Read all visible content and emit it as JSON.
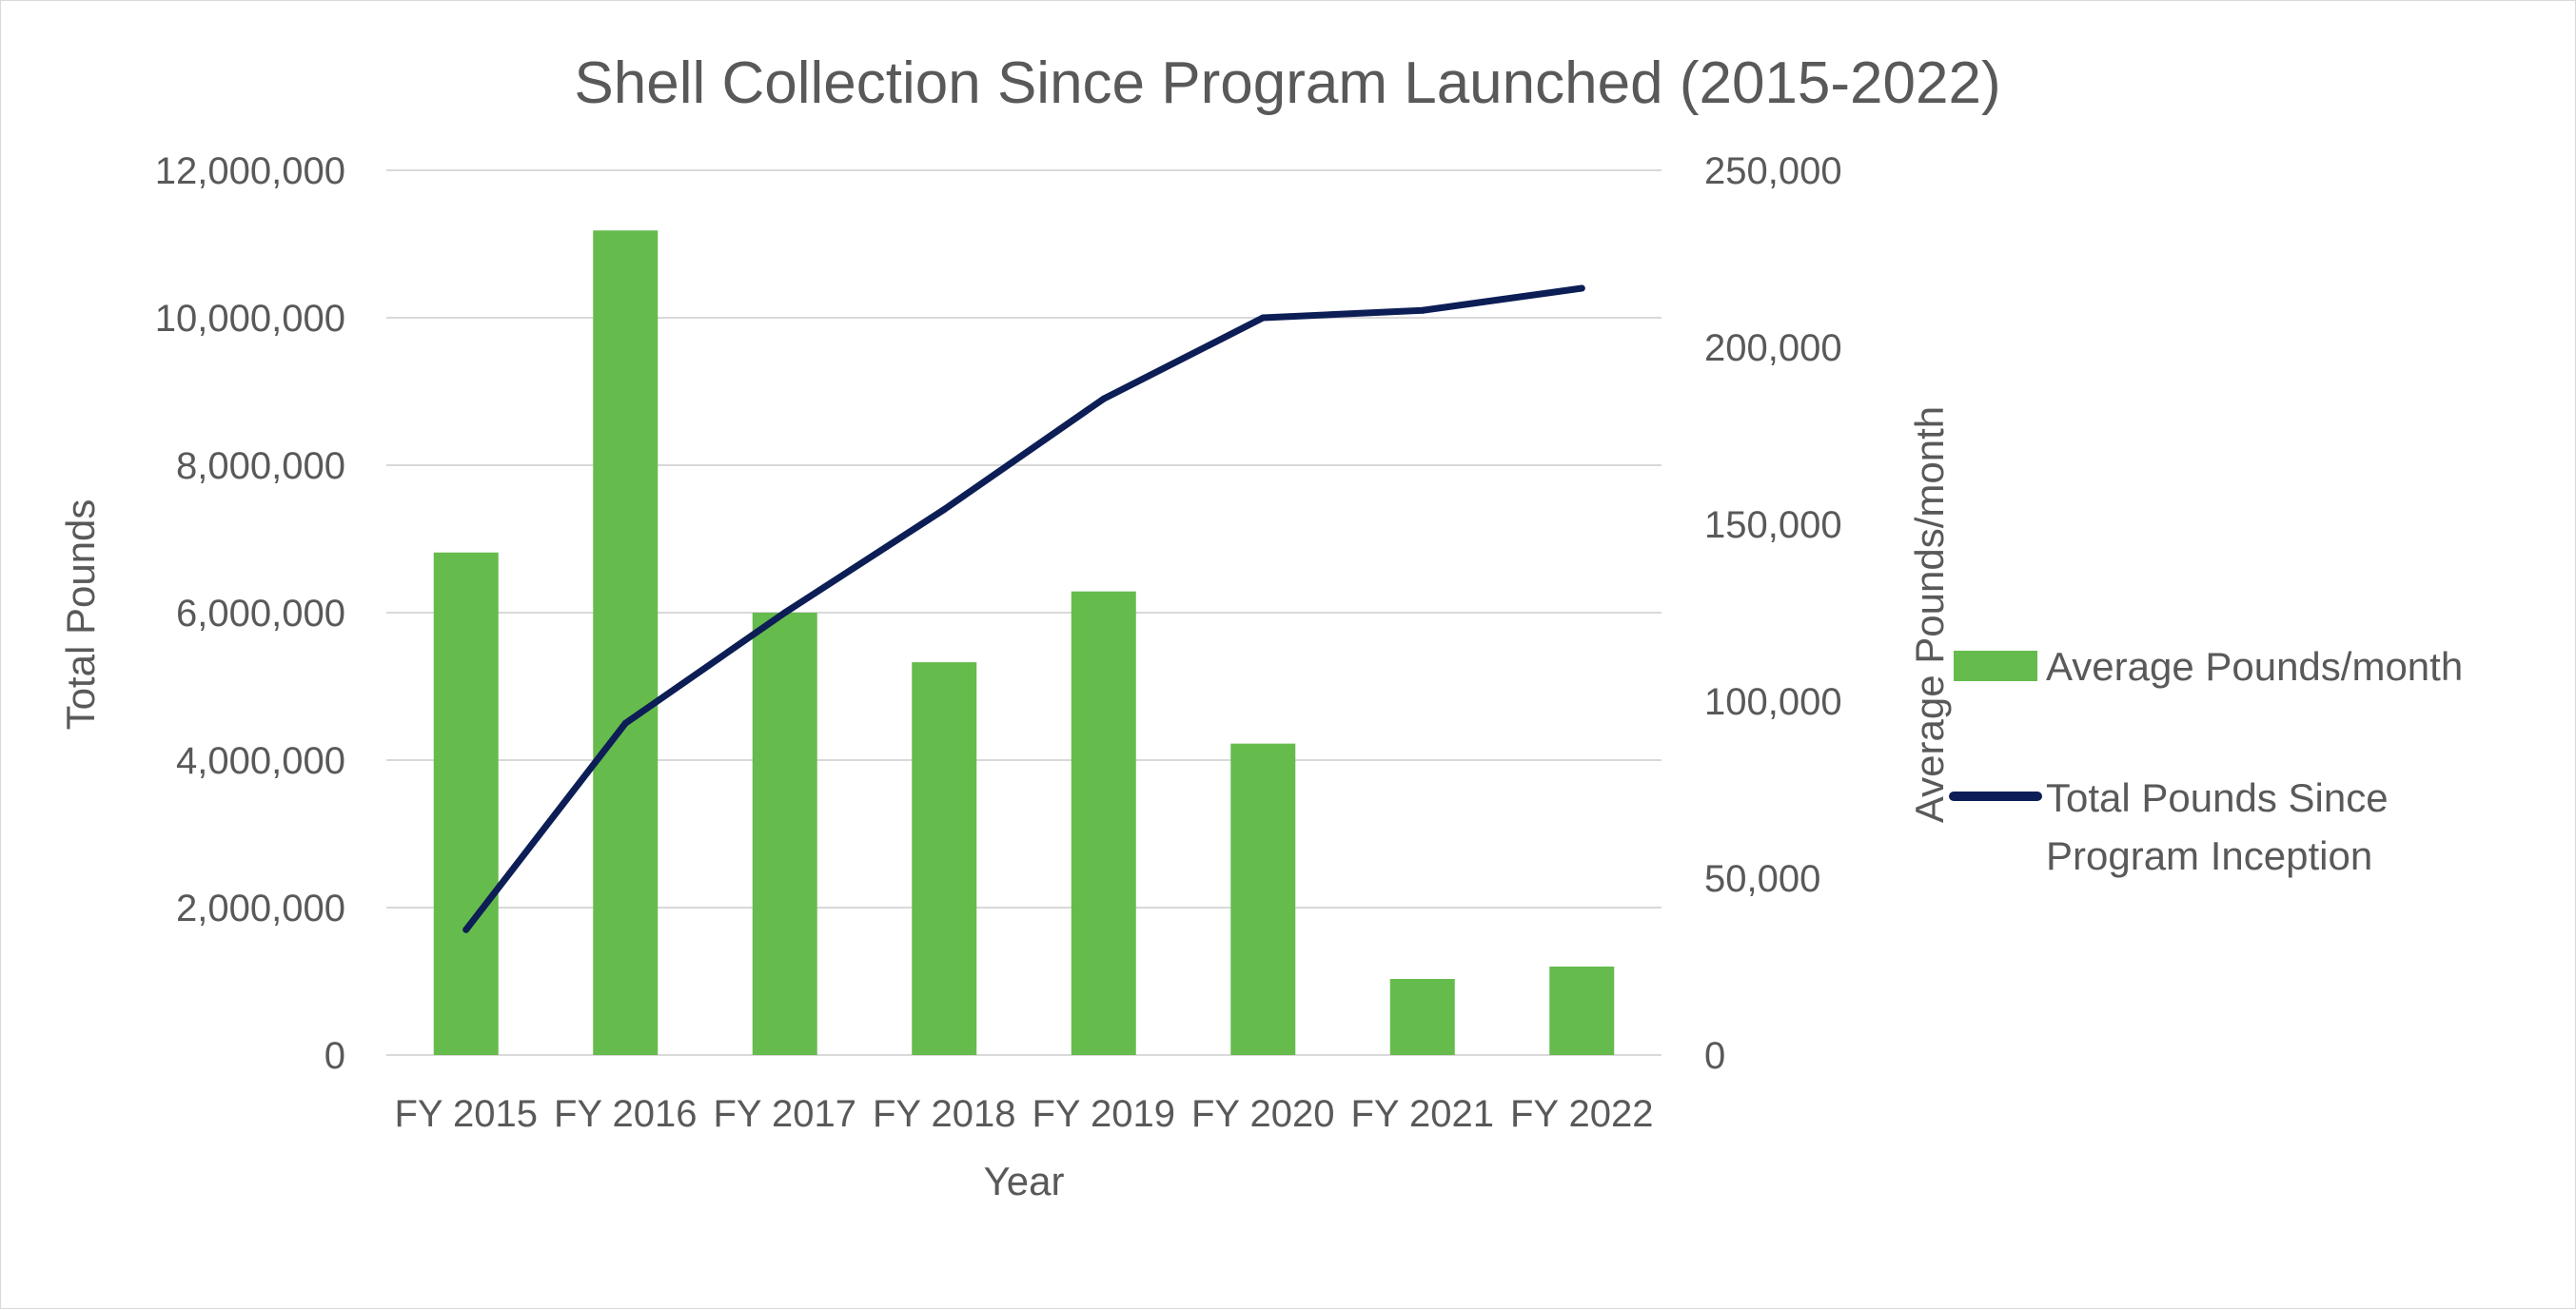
{
  "chart_data": {
    "type": "bar",
    "title": "Shell Collection Since Program Launched (2015-2022)",
    "xlabel": "Year",
    "ylabel": "Total Pounds",
    "y2label": "Average Pounds/month",
    "categories": [
      "FY 2015",
      "FY 2016",
      "FY 2017",
      "FY 2018",
      "FY 2019",
      "FY 2020",
      "FY 2021",
      "FY 2022"
    ],
    "ylim": [
      0,
      12000000
    ],
    "y2lim": [
      0,
      250000
    ],
    "yticks": [
      "0",
      "2,000,000",
      "4,000,000",
      "6,000,000",
      "8,000,000",
      "10,000,000",
      "12,000,000"
    ],
    "y2ticks": [
      "0",
      "50,000",
      "100,000",
      "150,000",
      "200,000",
      "250,000"
    ],
    "grid": true,
    "legend_position": "right",
    "series": [
      {
        "name": "Average Pounds/month",
        "type": "bar",
        "axis": "right",
        "color": "#66bb4d",
        "values": [
          142000,
          233000,
          125000,
          111000,
          131000,
          88000,
          21500,
          25000
        ]
      },
      {
        "name": "Total Pounds Since Program Inception",
        "legend_lines": [
          "Total Pounds Since",
          "Program Inception"
        ],
        "type": "line",
        "axis": "left",
        "color": "#0c1e55",
        "values": [
          1700000,
          4500000,
          6000000,
          7400000,
          8900000,
          10000000,
          10100000,
          10400000
        ]
      }
    ]
  }
}
